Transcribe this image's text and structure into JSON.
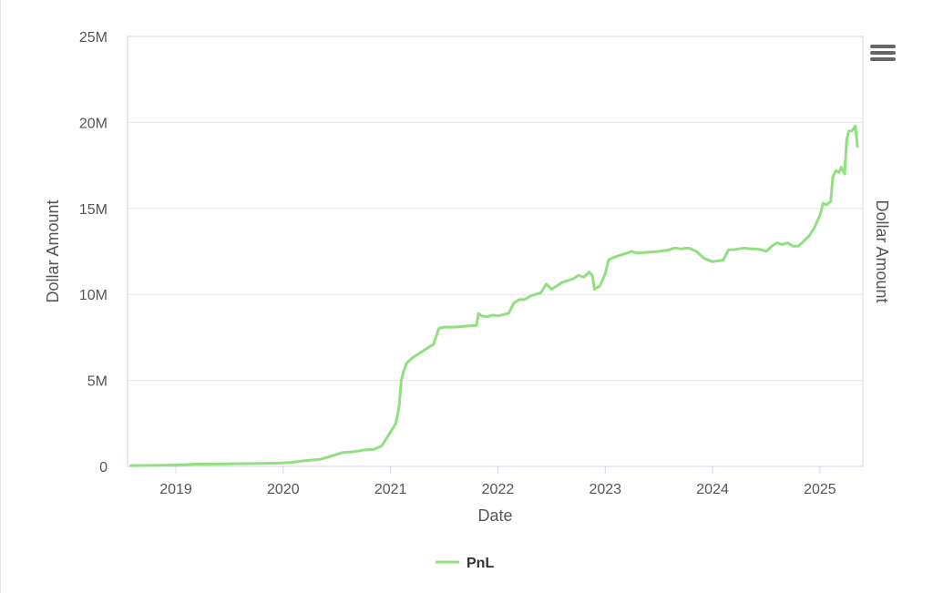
{
  "chart_data": {
    "type": "line",
    "title": "",
    "xlabel": "Date",
    "ylabel": "Dollar Amount",
    "ylabel_right": "Dollar Amount",
    "ylim": [
      0,
      25000000
    ],
    "y_ticks": [
      0,
      5000000,
      10000000,
      15000000,
      20000000,
      25000000
    ],
    "y_tick_labels": [
      "0",
      "5M",
      "10M",
      "15M",
      "20M",
      "25M"
    ],
    "x_range": [
      2018.55,
      2025.4
    ],
    "x_ticks": [
      2019,
      2020,
      2021,
      2022,
      2023,
      2024,
      2025
    ],
    "x_tick_labels": [
      "2019",
      "2020",
      "2021",
      "2022",
      "2023",
      "2024",
      "2025"
    ],
    "grid": true,
    "legend": "bottom-center",
    "series": [
      {
        "name": "PnL",
        "color": "#90e080",
        "x": [
          2018.58,
          2018.8,
          2019.0,
          2019.2,
          2019.5,
          2019.8,
          2020.0,
          2020.1,
          2020.2,
          2020.35,
          2020.45,
          2020.55,
          2020.65,
          2020.75,
          2020.85,
          2020.92,
          2021.0,
          2021.05,
          2021.08,
          2021.1,
          2021.12,
          2021.15,
          2021.2,
          2021.25,
          2021.3,
          2021.35,
          2021.4,
          2021.45,
          2021.46,
          2021.5,
          2021.6,
          2021.7,
          2021.8,
          2021.82,
          2021.85,
          2021.9,
          2021.95,
          2022.0,
          2022.1,
          2022.15,
          2022.2,
          2022.25,
          2022.3,
          2022.4,
          2022.45,
          2022.5,
          2022.55,
          2022.6,
          2022.65,
          2022.7,
          2022.75,
          2022.8,
          2022.85,
          2022.88,
          2022.9,
          2022.95,
          2023.0,
          2023.03,
          2023.06,
          2023.1,
          2023.15,
          2023.2,
          2023.25,
          2023.3,
          2023.4,
          2023.5,
          2023.6,
          2023.65,
          2023.7,
          2023.78,
          2023.85,
          2023.92,
          2024.0,
          2024.1,
          2024.15,
          2024.2,
          2024.3,
          2024.35,
          2024.4,
          2024.45,
          2024.5,
          2024.55,
          2024.6,
          2024.65,
          2024.7,
          2024.75,
          2024.8,
          2024.85,
          2024.9,
          2024.95,
          2025.0,
          2025.03,
          2025.06,
          2025.1,
          2025.12,
          2025.15,
          2025.18,
          2025.2,
          2025.23,
          2025.25,
          2025.27,
          2025.3,
          2025.33,
          2025.35
        ],
        "values": [
          50000,
          60000,
          80000,
          130000,
          150000,
          170000,
          200000,
          250000,
          330000,
          420000,
          600000,
          800000,
          850000,
          950000,
          1000000,
          1200000,
          2000000,
          2500000,
          3500000,
          5000000,
          5500000,
          6000000,
          6300000,
          6500000,
          6700000,
          6900000,
          7100000,
          8000000,
          8050000,
          8100000,
          8100000,
          8150000,
          8200000,
          8900000,
          8750000,
          8700000,
          8800000,
          8750000,
          8900000,
          9500000,
          9700000,
          9700000,
          9900000,
          10100000,
          10600000,
          10300000,
          10500000,
          10700000,
          10800000,
          10900000,
          11100000,
          11000000,
          11300000,
          11100000,
          10300000,
          10500000,
          11200000,
          12000000,
          12100000,
          12200000,
          12300000,
          12400000,
          12500000,
          12400000,
          12450000,
          12500000,
          12600000,
          12700000,
          12650000,
          12700000,
          12500000,
          12100000,
          11900000,
          12000000,
          12600000,
          12600000,
          12700000,
          12650000,
          12650000,
          12600000,
          12500000,
          12800000,
          13000000,
          12900000,
          13000000,
          12800000,
          12800000,
          13100000,
          13400000,
          13900000,
          14600000,
          15300000,
          15200000,
          15400000,
          16800000,
          17200000,
          17100000,
          17400000,
          17000000,
          19000000,
          19500000,
          19500000,
          19800000,
          18600000
        ]
      }
    ]
  }
}
